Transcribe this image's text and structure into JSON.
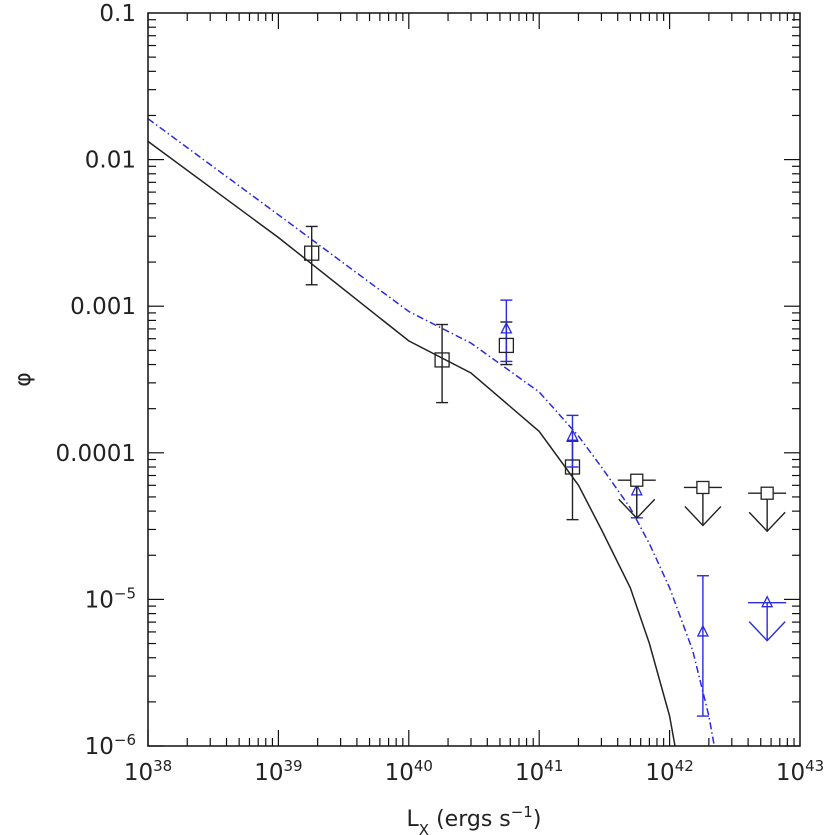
{
  "chart_data": {
    "type": "scatter",
    "title": "",
    "xlabel": "L_X (ergs s^-1)",
    "xlabel_parts": {
      "main": "L",
      "sub": "X",
      "rest": " (ergs s",
      "sup": "−1",
      "end": ")"
    },
    "ylabel": "φ",
    "xscale": "log",
    "yscale": "log",
    "xlim": [
      1e+38,
      1e+43
    ],
    "ylim": [
      1e-06,
      0.1
    ],
    "x_ticks": [
      {
        "value": 1e+38,
        "base": "10",
        "exp": "38"
      },
      {
        "value": 1e+39,
        "base": "10",
        "exp": "39"
      },
      {
        "value": 1e+40,
        "base": "10",
        "exp": "40"
      },
      {
        "value": 1e+41,
        "base": "10",
        "exp": "41"
      },
      {
        "value": 1e+42,
        "base": "10",
        "exp": "42"
      },
      {
        "value": 1e+43,
        "base": "10",
        "exp": "43"
      }
    ],
    "y_ticks": [
      {
        "value": 1e-06,
        "base": "10",
        "exp": "−6"
      },
      {
        "value": 1e-05,
        "base": "10",
        "exp": "−5"
      },
      {
        "value": 0.0001,
        "text": "0.0001"
      },
      {
        "value": 0.001,
        "text": "0.001"
      },
      {
        "value": 0.01,
        "text": "0.01"
      },
      {
        "value": 0.1,
        "text": "0.1"
      }
    ],
    "series": [
      {
        "marker": "square",
        "color": "#222222",
        "points": [
          {
            "x": 1.8e+39,
            "y": 0.0023,
            "yerr": [
              0.0014,
              0.0035
            ]
          },
          {
            "x": 1.8e+40,
            "y": 0.00043,
            "yerr": [
              0.00022,
              0.00075
            ]
          },
          {
            "x": 5.6e+40,
            "y": 0.00054,
            "yerr": [
              0.0004,
              0.00078
            ]
          },
          {
            "x": 1.8e+41,
            "y": 8e-05,
            "yerr": [
              3.5e-05,
              0.00012
            ]
          }
        ],
        "upper_limits": [
          {
            "x": 5.6e+41,
            "y": 6.5e-05
          },
          {
            "x": 1.8e+42,
            "y": 5.8e-05
          },
          {
            "x": 5.6e+42,
            "y": 5.3e-05
          }
        ]
      },
      {
        "marker": "triangle",
        "color": "#2a2ae0",
        "points": [
          {
            "x": 5.6e+40,
            "y": 0.0007,
            "yerr": [
              0.00042,
              0.0011
            ]
          },
          {
            "x": 1.8e+41,
            "y": 0.00013,
            "yerr": [
              8e-05,
              0.00018
            ]
          },
          {
            "x": 5.6e+41,
            "y": 5.5e-05,
            "yerr": [
              3.6e-05,
              7e-05
            ]
          },
          {
            "x": 1.8e+42,
            "y": 6e-06,
            "yerr": [
              1.6e-06,
              1.45e-05
            ]
          }
        ],
        "upper_limits": [
          {
            "x": 5.6e+42,
            "y": 9.5e-06
          }
        ]
      }
    ],
    "fits": [
      {
        "style": "solid",
        "color": "#222222",
        "points": [
          [
            1e+38,
            0.0133
          ],
          [
            1e+39,
            0.00294
          ],
          [
            1e+40,
            0.00058
          ],
          [
            3e+40,
            0.00035
          ],
          [
            1e+41,
            0.00014
          ],
          [
            2e+41,
            6e-05
          ],
          [
            3e+41,
            3e-05
          ],
          [
            5e+41,
            1.2e-05
          ],
          [
            7e+41,
            5e-06
          ],
          [
            1e+42,
            1.6e-06
          ],
          [
            1.1e+42,
            1e-06
          ]
        ]
      },
      {
        "style": "dash-dot",
        "color": "#2a2ae0",
        "points": [
          [
            1e+38,
            0.019
          ],
          [
            1e+39,
            0.0042
          ],
          [
            1e+40,
            0.00092
          ],
          [
            3e+40,
            0.00056
          ],
          [
            1e+41,
            0.00026
          ],
          [
            2e+41,
            0.00013
          ],
          [
            3e+41,
            8e-05
          ],
          [
            5e+41,
            4.2e-05
          ],
          [
            7e+41,
            2.4e-05
          ],
          [
            1e+42,
            1.2e-05
          ],
          [
            1.5e+42,
            4.5e-06
          ],
          [
            2e+42,
            1.6e-06
          ],
          [
            2.2e+42,
            1e-06
          ]
        ]
      }
    ]
  }
}
